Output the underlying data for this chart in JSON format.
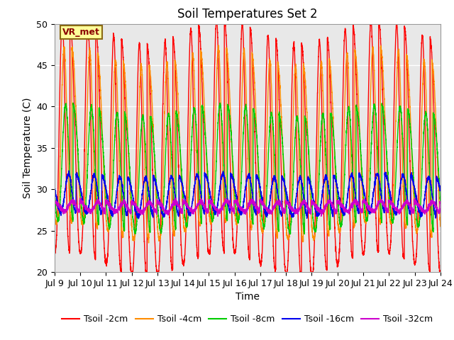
{
  "title": "Soil Temperatures Set 2",
  "xlabel": "Time",
  "ylabel": "Soil Temperature (C)",
  "ylim": [
    20,
    50
  ],
  "yticks": [
    20,
    25,
    30,
    35,
    40,
    45,
    50
  ],
  "xtick_labels": [
    "Jul 9",
    "Jul 10",
    "Jul 11",
    "Jul 12",
    "Jul 13",
    "Jul 14",
    "Jul 15",
    "Jul 16",
    "Jul 17",
    "Jul 18",
    "Jul 19",
    "Jul 20",
    "Jul 21",
    "Jul 22",
    "Jul 23",
    "Jul 24"
  ],
  "annotation_text": "VR_met",
  "series": [
    {
      "label": "Tsoil -2cm",
      "color": "#FF0000",
      "amplitude": 14.0,
      "mean": 35.0,
      "phase": 0.0,
      "depth_factor": 1.0
    },
    {
      "label": "Tsoil -4cm",
      "color": "#FF8C00",
      "amplitude": 10.5,
      "mean": 35.5,
      "phase": 0.45,
      "depth_factor": 0.9
    },
    {
      "label": "Tsoil -8cm",
      "color": "#00CC00",
      "amplitude": 7.0,
      "mean": 32.5,
      "phase": 0.9,
      "depth_factor": 0.75
    },
    {
      "label": "Tsoil -16cm",
      "color": "#0000EE",
      "amplitude": 2.3,
      "mean": 29.3,
      "phase": 1.6,
      "depth_factor": 0.5
    },
    {
      "label": "Tsoil -32cm",
      "color": "#CC00CC",
      "amplitude": 0.6,
      "mean": 27.9,
      "phase": 2.5,
      "depth_factor": 0.2
    }
  ],
  "bg_color": "#E8E8E8",
  "fig_bg_color": "#FFFFFF",
  "grid_color": "#FFFFFF",
  "title_fontsize": 12,
  "axis_label_fontsize": 10,
  "tick_label_fontsize": 9,
  "legend_fontsize": 9
}
